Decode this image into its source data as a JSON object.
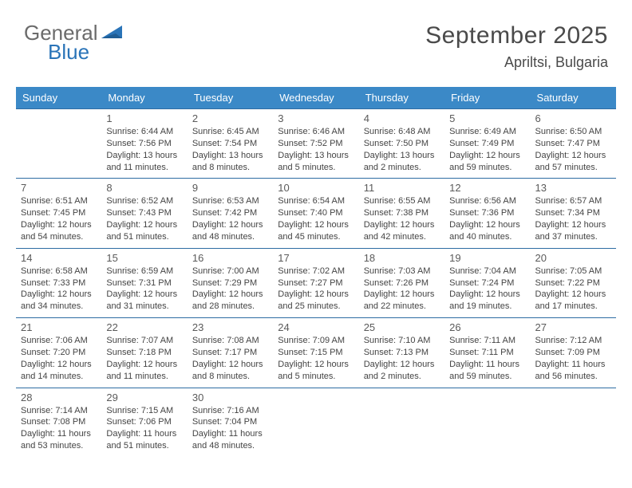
{
  "brand": {
    "general": "General",
    "blue": "Blue"
  },
  "title": "September 2025",
  "location": "Apriltsi, Bulgaria",
  "accent_color": "#3b89c7",
  "border_color": "#2e6ca3",
  "dow": [
    "Sunday",
    "Monday",
    "Tuesday",
    "Wednesday",
    "Thursday",
    "Friday",
    "Saturday"
  ],
  "weeks": [
    [
      null,
      {
        "n": "1",
        "sr": "Sunrise: 6:44 AM",
        "ss": "Sunset: 7:56 PM",
        "dl1": "Daylight: 13 hours",
        "dl2": "and 11 minutes."
      },
      {
        "n": "2",
        "sr": "Sunrise: 6:45 AM",
        "ss": "Sunset: 7:54 PM",
        "dl1": "Daylight: 13 hours",
        "dl2": "and 8 minutes."
      },
      {
        "n": "3",
        "sr": "Sunrise: 6:46 AM",
        "ss": "Sunset: 7:52 PM",
        "dl1": "Daylight: 13 hours",
        "dl2": "and 5 minutes."
      },
      {
        "n": "4",
        "sr": "Sunrise: 6:48 AM",
        "ss": "Sunset: 7:50 PM",
        "dl1": "Daylight: 13 hours",
        "dl2": "and 2 minutes."
      },
      {
        "n": "5",
        "sr": "Sunrise: 6:49 AM",
        "ss": "Sunset: 7:49 PM",
        "dl1": "Daylight: 12 hours",
        "dl2": "and 59 minutes."
      },
      {
        "n": "6",
        "sr": "Sunrise: 6:50 AM",
        "ss": "Sunset: 7:47 PM",
        "dl1": "Daylight: 12 hours",
        "dl2": "and 57 minutes."
      }
    ],
    [
      {
        "n": "7",
        "sr": "Sunrise: 6:51 AM",
        "ss": "Sunset: 7:45 PM",
        "dl1": "Daylight: 12 hours",
        "dl2": "and 54 minutes."
      },
      {
        "n": "8",
        "sr": "Sunrise: 6:52 AM",
        "ss": "Sunset: 7:43 PM",
        "dl1": "Daylight: 12 hours",
        "dl2": "and 51 minutes."
      },
      {
        "n": "9",
        "sr": "Sunrise: 6:53 AM",
        "ss": "Sunset: 7:42 PM",
        "dl1": "Daylight: 12 hours",
        "dl2": "and 48 minutes."
      },
      {
        "n": "10",
        "sr": "Sunrise: 6:54 AM",
        "ss": "Sunset: 7:40 PM",
        "dl1": "Daylight: 12 hours",
        "dl2": "and 45 minutes."
      },
      {
        "n": "11",
        "sr": "Sunrise: 6:55 AM",
        "ss": "Sunset: 7:38 PM",
        "dl1": "Daylight: 12 hours",
        "dl2": "and 42 minutes."
      },
      {
        "n": "12",
        "sr": "Sunrise: 6:56 AM",
        "ss": "Sunset: 7:36 PM",
        "dl1": "Daylight: 12 hours",
        "dl2": "and 40 minutes."
      },
      {
        "n": "13",
        "sr": "Sunrise: 6:57 AM",
        "ss": "Sunset: 7:34 PM",
        "dl1": "Daylight: 12 hours",
        "dl2": "and 37 minutes."
      }
    ],
    [
      {
        "n": "14",
        "sr": "Sunrise: 6:58 AM",
        "ss": "Sunset: 7:33 PM",
        "dl1": "Daylight: 12 hours",
        "dl2": "and 34 minutes."
      },
      {
        "n": "15",
        "sr": "Sunrise: 6:59 AM",
        "ss": "Sunset: 7:31 PM",
        "dl1": "Daylight: 12 hours",
        "dl2": "and 31 minutes."
      },
      {
        "n": "16",
        "sr": "Sunrise: 7:00 AM",
        "ss": "Sunset: 7:29 PM",
        "dl1": "Daylight: 12 hours",
        "dl2": "and 28 minutes."
      },
      {
        "n": "17",
        "sr": "Sunrise: 7:02 AM",
        "ss": "Sunset: 7:27 PM",
        "dl1": "Daylight: 12 hours",
        "dl2": "and 25 minutes."
      },
      {
        "n": "18",
        "sr": "Sunrise: 7:03 AM",
        "ss": "Sunset: 7:26 PM",
        "dl1": "Daylight: 12 hours",
        "dl2": "and 22 minutes."
      },
      {
        "n": "19",
        "sr": "Sunrise: 7:04 AM",
        "ss": "Sunset: 7:24 PM",
        "dl1": "Daylight: 12 hours",
        "dl2": "and 19 minutes."
      },
      {
        "n": "20",
        "sr": "Sunrise: 7:05 AM",
        "ss": "Sunset: 7:22 PM",
        "dl1": "Daylight: 12 hours",
        "dl2": "and 17 minutes."
      }
    ],
    [
      {
        "n": "21",
        "sr": "Sunrise: 7:06 AM",
        "ss": "Sunset: 7:20 PM",
        "dl1": "Daylight: 12 hours",
        "dl2": "and 14 minutes."
      },
      {
        "n": "22",
        "sr": "Sunrise: 7:07 AM",
        "ss": "Sunset: 7:18 PM",
        "dl1": "Daylight: 12 hours",
        "dl2": "and 11 minutes."
      },
      {
        "n": "23",
        "sr": "Sunrise: 7:08 AM",
        "ss": "Sunset: 7:17 PM",
        "dl1": "Daylight: 12 hours",
        "dl2": "and 8 minutes."
      },
      {
        "n": "24",
        "sr": "Sunrise: 7:09 AM",
        "ss": "Sunset: 7:15 PM",
        "dl1": "Daylight: 12 hours",
        "dl2": "and 5 minutes."
      },
      {
        "n": "25",
        "sr": "Sunrise: 7:10 AM",
        "ss": "Sunset: 7:13 PM",
        "dl1": "Daylight: 12 hours",
        "dl2": "and 2 minutes."
      },
      {
        "n": "26",
        "sr": "Sunrise: 7:11 AM",
        "ss": "Sunset: 7:11 PM",
        "dl1": "Daylight: 11 hours",
        "dl2": "and 59 minutes."
      },
      {
        "n": "27",
        "sr": "Sunrise: 7:12 AM",
        "ss": "Sunset: 7:09 PM",
        "dl1": "Daylight: 11 hours",
        "dl2": "and 56 minutes."
      }
    ],
    [
      {
        "n": "28",
        "sr": "Sunrise: 7:14 AM",
        "ss": "Sunset: 7:08 PM",
        "dl1": "Daylight: 11 hours",
        "dl2": "and 53 minutes."
      },
      {
        "n": "29",
        "sr": "Sunrise: 7:15 AM",
        "ss": "Sunset: 7:06 PM",
        "dl1": "Daylight: 11 hours",
        "dl2": "and 51 minutes."
      },
      {
        "n": "30",
        "sr": "Sunrise: 7:16 AM",
        "ss": "Sunset: 7:04 PM",
        "dl1": "Daylight: 11 hours",
        "dl2": "and 48 minutes."
      },
      null,
      null,
      null,
      null
    ]
  ]
}
